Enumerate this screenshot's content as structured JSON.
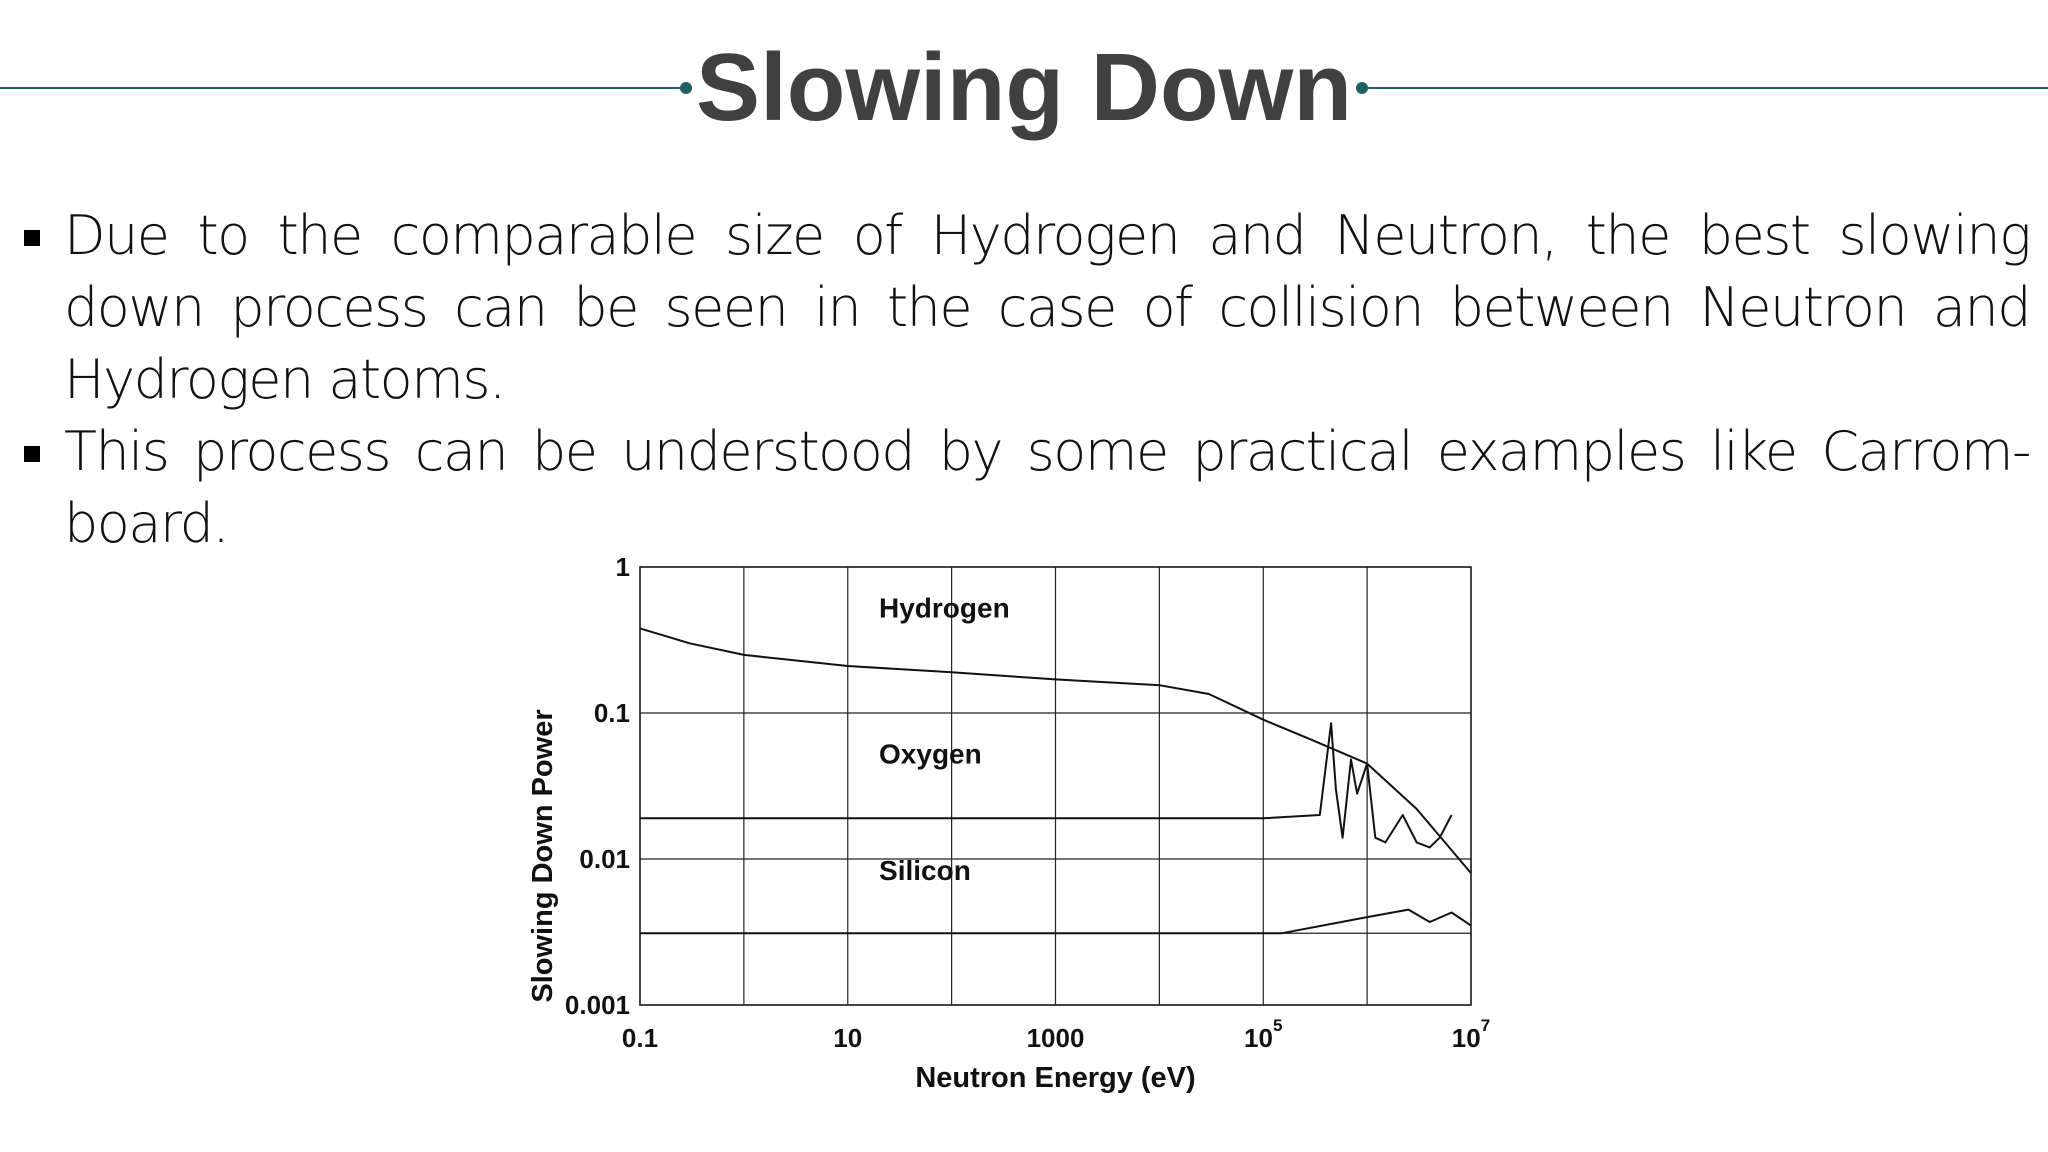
{
  "slide": {
    "title": "Slowing Down",
    "bullets": [
      "Due to the comparable size of Hydrogen and Neutron, the best slowing down process can be seen in the case of collision between Neutron and Hydrogen atoms.",
      "This process can be understood by some practical examples like Carrom-board."
    ],
    "colors": {
      "title": "#404040",
      "accent_line": "#1f5f66"
    }
  },
  "chart_data": {
    "type": "line",
    "xlabel": "Neutron Energy (eV)",
    "ylabel": "Slowing Down Power",
    "x_scale": "log",
    "y_scale": "log",
    "xlim": [
      0.1,
      10000000
    ],
    "ylim": [
      0.001,
      1
    ],
    "grid": true,
    "x_ticks": [
      {
        "value": 0.1,
        "label": "0.1"
      },
      {
        "value": 10,
        "label": "10"
      },
      {
        "value": 1000,
        "label": "1000"
      },
      {
        "value": 100000,
        "label": "10",
        "exp": "5"
      },
      {
        "value": 10000000,
        "label": "10",
        "exp": "7"
      }
    ],
    "y_ticks": [
      {
        "value": 1,
        "label": "1"
      },
      {
        "value": 0.1,
        "label": "0.1"
      },
      {
        "value": 0.01,
        "label": "0.01"
      },
      {
        "value": 0.001,
        "label": "0.001"
      }
    ],
    "series": [
      {
        "name": "Hydrogen",
        "label_at": [
          20,
          0.45
        ],
        "points": [
          [
            0.1,
            0.38
          ],
          [
            0.3,
            0.3
          ],
          [
            1,
            0.25
          ],
          [
            10,
            0.21
          ],
          [
            100,
            0.19
          ],
          [
            1000,
            0.17
          ],
          [
            10000,
            0.155
          ],
          [
            30000,
            0.135
          ],
          [
            100000,
            0.09
          ],
          [
            300000,
            0.065
          ],
          [
            1000000,
            0.045
          ],
          [
            3000000,
            0.022
          ],
          [
            10000000,
            0.008
          ]
        ]
      },
      {
        "name": "Oxygen",
        "label_at": [
          20,
          0.045
        ],
        "points": [
          [
            0.1,
            0.019
          ],
          [
            10,
            0.019
          ],
          [
            1000,
            0.019
          ],
          [
            100000,
            0.019
          ],
          [
            350000,
            0.02
          ],
          [
            450000,
            0.085
          ],
          [
            500000,
            0.03
          ],
          [
            580000,
            0.014
          ],
          [
            700000,
            0.048
          ],
          [
            800000,
            0.028
          ],
          [
            1000000,
            0.045
          ],
          [
            1200000,
            0.014
          ],
          [
            1500000,
            0.013
          ],
          [
            2200000,
            0.02
          ],
          [
            3000000,
            0.013
          ],
          [
            4000000,
            0.012
          ],
          [
            5000000,
            0.014
          ],
          [
            6500000,
            0.02
          ]
        ]
      },
      {
        "name": "Silicon",
        "label_at": [
          20,
          0.0072
        ],
        "points": [
          [
            0.1,
            0.0031
          ],
          [
            1000,
            0.0031
          ],
          [
            100000,
            0.0031
          ],
          [
            150000,
            0.0031
          ],
          [
            1000000,
            0.004
          ],
          [
            2500000,
            0.0045
          ],
          [
            4000000,
            0.0037
          ],
          [
            6500000,
            0.0043
          ],
          [
            10000000,
            0.0035
          ]
        ]
      }
    ]
  }
}
